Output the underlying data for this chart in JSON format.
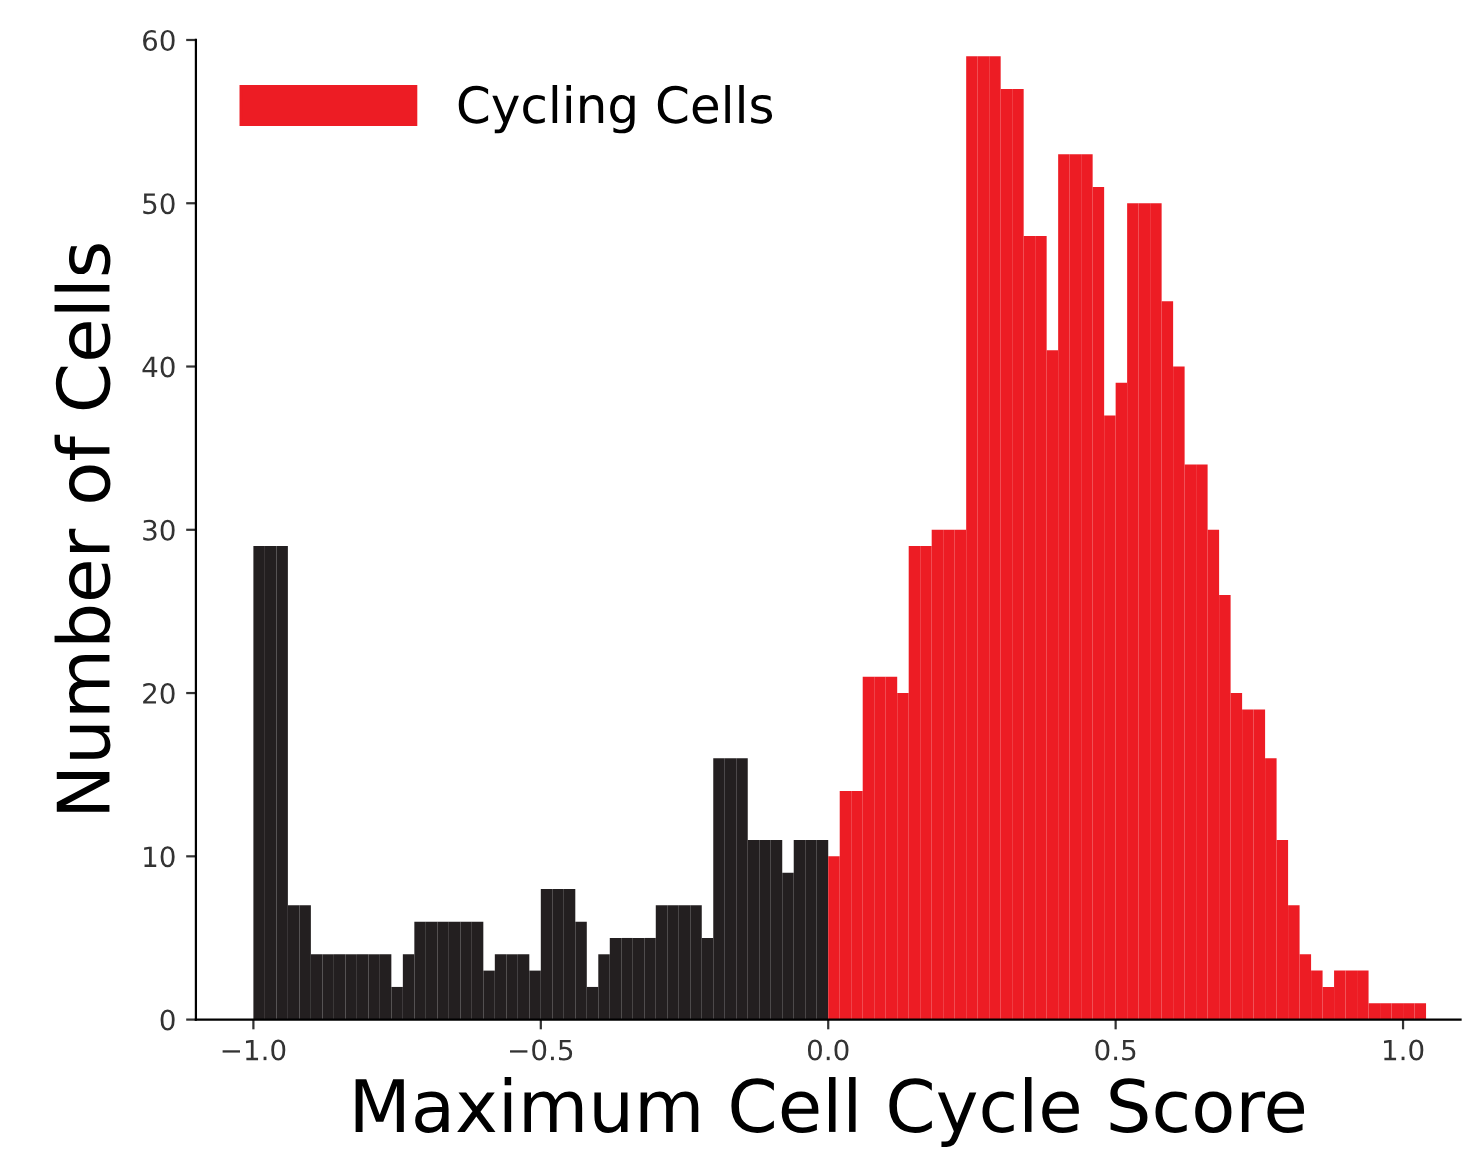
{
  "chart_data": {
    "type": "histogram",
    "xlabel": "Maximum Cell Cycle Score",
    "ylabel": "Number of Cells",
    "bins": [
      -1.0,
      -0.98,
      -0.96,
      -0.94,
      -0.92,
      -0.9,
      -0.88,
      -0.86,
      -0.84,
      -0.82,
      -0.8,
      -0.78,
      -0.76,
      -0.74,
      -0.72,
      -0.7,
      -0.68,
      -0.66,
      -0.64,
      -0.62,
      -0.6,
      -0.58,
      -0.56,
      -0.54,
      -0.52,
      -0.5,
      -0.48,
      -0.46,
      -0.44,
      -0.42,
      -0.4,
      -0.38,
      -0.36,
      -0.34,
      -0.32,
      -0.3,
      -0.28,
      -0.26,
      -0.24,
      -0.22,
      -0.2,
      -0.18,
      -0.16,
      -0.14,
      -0.12,
      -0.1,
      -0.08,
      -0.06,
      -0.04,
      -0.02,
      0.0,
      0.02,
      0.04,
      0.06,
      0.08,
      0.1,
      0.12,
      0.14,
      0.16,
      0.18,
      0.2,
      0.22,
      0.24,
      0.26,
      0.28,
      0.3,
      0.32,
      0.34,
      0.36,
      0.38,
      0.4,
      0.42,
      0.44,
      0.46,
      0.48,
      0.5,
      0.52,
      0.54,
      0.56,
      0.58,
      0.6,
      0.62,
      0.64,
      0.66,
      0.68,
      0.7,
      0.72,
      0.74,
      0.76,
      0.78,
      0.8,
      0.82,
      0.84,
      0.86,
      0.88,
      0.9,
      0.92,
      0.94,
      0.96,
      0.98,
      1.0,
      1.02,
      1.04
    ],
    "series": [
      {
        "color": "#231f20",
        "values": [
          29,
          29,
          29,
          7,
          7,
          4,
          4,
          4,
          4,
          4,
          4,
          4,
          2,
          4,
          6,
          6,
          6,
          6,
          6,
          6,
          3,
          4,
          4,
          4,
          3,
          8,
          8,
          8,
          6,
          2,
          4,
          5,
          5,
          5,
          5,
          7,
          7,
          7,
          7,
          5,
          16,
          16,
          16,
          11,
          11,
          11,
          9,
          11,
          11,
          11,
          null,
          null,
          null,
          null,
          null,
          null,
          null,
          null,
          null,
          null,
          null,
          null,
          null,
          null,
          null,
          null,
          null,
          null,
          null,
          null,
          null,
          null,
          null,
          null,
          null,
          null,
          null,
          null,
          null,
          null,
          null,
          null,
          null,
          null,
          null,
          null,
          null,
          null,
          null,
          null,
          null,
          null,
          null,
          null,
          null,
          null,
          null,
          null,
          null,
          null,
          null,
          null
        ]
      },
      {
        "name": "Cycling Cells",
        "color": "#ed1c24",
        "values": [
          null,
          null,
          null,
          null,
          null,
          null,
          null,
          null,
          null,
          null,
          null,
          null,
          null,
          null,
          null,
          null,
          null,
          null,
          null,
          null,
          null,
          null,
          null,
          null,
          null,
          null,
          null,
          null,
          null,
          null,
          null,
          null,
          null,
          null,
          null,
          null,
          null,
          null,
          null,
          null,
          null,
          null,
          null,
          null,
          null,
          null,
          null,
          null,
          null,
          null,
          10,
          14,
          14,
          21,
          21,
          21,
          20,
          29,
          29,
          30,
          30,
          30,
          59,
          59,
          59,
          57,
          57,
          48,
          48,
          41,
          53,
          53,
          53,
          51,
          37,
          39,
          50,
          50,
          50,
          44,
          40,
          34,
          34,
          30,
          26,
          20,
          19,
          19,
          16,
          11,
          7,
          4,
          3,
          2,
          3,
          3,
          3,
          1,
          1,
          1,
          1,
          1
        ]
      }
    ],
    "xlim": [
      -1.1,
      1.1
    ],
    "xticks": [
      {
        "value": -1.0,
        "label": "−1.0"
      },
      {
        "value": -0.5,
        "label": "−0.5"
      },
      {
        "value": 0.0,
        "label": "0.0"
      },
      {
        "value": 0.5,
        "label": "0.5"
      },
      {
        "value": 1.0,
        "label": "1.0"
      }
    ],
    "ylim": [
      0,
      60
    ],
    "yticks": [
      0,
      10,
      20,
      30,
      40,
      50,
      60
    ],
    "grid": false,
    "legend": "top left"
  }
}
